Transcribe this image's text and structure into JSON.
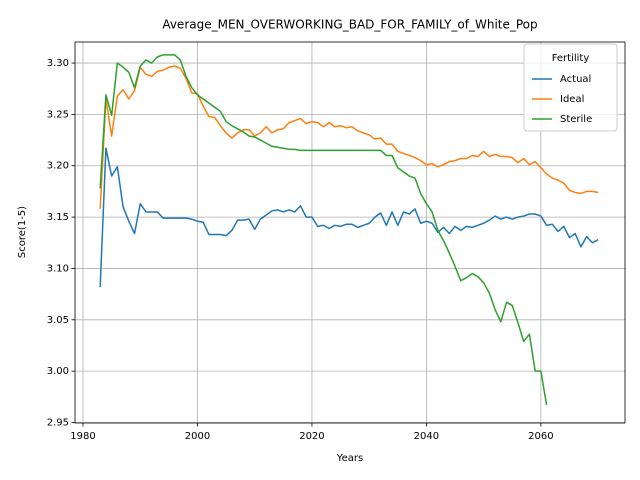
{
  "chart_data": {
    "type": "line",
    "title": "Average_MEN_OVERWORKING_BAD_FOR_FAMILY_of_White_Pop",
    "x_label": "Years",
    "y_label": "Score(1-5)",
    "legend_title": "Fertility",
    "legend_position": "upper right",
    "grid": true,
    "xlim": [
      1978.6,
      2074.7
    ],
    "ylim": [
      2.9495,
      3.3205
    ],
    "xticks": [
      1980,
      2000,
      2020,
      2040,
      2060
    ],
    "yticks": [
      2.95,
      {
        "value": 3,
        "label": "3.00"
      },
      3.05,
      {
        "value": 3.1,
        "label": "3.10"
      },
      3.15,
      {
        "value": 3.2,
        "label": "3.20"
      },
      3.25,
      {
        "value": 3.3,
        "label": "3.30"
      }
    ],
    "x": [
      1983,
      1984,
      1985,
      1986,
      1987,
      1988,
      1989,
      1990,
      1991,
      1992,
      1993,
      1994,
      1995,
      1996,
      1997,
      1998,
      1999,
      2000,
      2001,
      2002,
      2003,
      2004,
      2005,
      2006,
      2007,
      2008,
      2009,
      2010,
      2011,
      2012,
      2013,
      2014,
      2015,
      2016,
      2017,
      2018,
      2019,
      2020,
      2021,
      2022,
      2023,
      2024,
      2025,
      2026,
      2027,
      2028,
      2029,
      2030,
      2031,
      2032,
      2033,
      2034,
      2035,
      2036,
      2037,
      2038,
      2039,
      2040,
      2041,
      2042,
      2043,
      2044,
      2045,
      2046,
      2047,
      2048,
      2049,
      2050,
      2051,
      2052,
      2053,
      2054,
      2055,
      2056,
      2057,
      2058,
      2059,
      2060,
      2061,
      2062,
      2063,
      2064,
      2065,
      2066,
      2067,
      2068,
      2069,
      2070
    ],
    "series": [
      {
        "name": "Actual",
        "color": "#1f77b4",
        "values": [
          3.082,
          3.217,
          3.19,
          3.199,
          3.16,
          3.146,
          3.134,
          3.163,
          3.155,
          3.155,
          3.155,
          3.149,
          3.149,
          3.149,
          3.149,
          3.149,
          3.148,
          3.146,
          3.145,
          3.133,
          3.133,
          3.133,
          3.132,
          3.137,
          3.147,
          3.147,
          3.148,
          3.138,
          3.148,
          3.152,
          3.156,
          3.157,
          3.155,
          3.157,
          3.155,
          3.161,
          3.15,
          3.15,
          3.141,
          3.142,
          3.139,
          3.142,
          3.141,
          3.143,
          3.143,
          3.14,
          3.142,
          3.144,
          3.15,
          3.154,
          3.142,
          3.155,
          3.142,
          3.155,
          3.153,
          3.158,
          3.144,
          3.146,
          3.144,
          3.135,
          3.14,
          3.134,
          3.141,
          3.137,
          3.141,
          3.14,
          3.142,
          3.144,
          3.147,
          3.151,
          3.148,
          3.15,
          3.148,
          3.15,
          3.151,
          3.153,
          3.153,
          3.151,
          3.142,
          3.143,
          3.136,
          3.141,
          3.13,
          3.134,
          3.121,
          3.131,
          3.125,
          3.128
        ]
      },
      {
        "name": "Ideal",
        "color": "#ff7f0e",
        "values": [
          3.158,
          3.265,
          3.229,
          3.268,
          3.274,
          3.265,
          3.273,
          3.296,
          3.289,
          3.287,
          3.292,
          3.293,
          3.296,
          3.297,
          3.295,
          3.285,
          3.271,
          3.27,
          3.258,
          3.248,
          3.247,
          3.239,
          3.232,
          3.227,
          3.232,
          3.235,
          3.235,
          3.229,
          3.232,
          3.238,
          3.232,
          3.235,
          3.236,
          3.242,
          3.244,
          3.246,
          3.241,
          3.243,
          3.242,
          3.238,
          3.242,
          3.238,
          3.239,
          3.237,
          3.238,
          3.234,
          3.232,
          3.23,
          3.226,
          3.227,
          3.221,
          3.221,
          3.214,
          3.212,
          3.21,
          3.208,
          3.205,
          3.201,
          3.202,
          3.199,
          3.201,
          3.204,
          3.205,
          3.207,
          3.207,
          3.21,
          3.209,
          3.214,
          3.209,
          3.211,
          3.209,
          3.209,
          3.208,
          3.203,
          3.207,
          3.201,
          3.204,
          3.198,
          3.192,
          3.188,
          3.186,
          3.183,
          3.176,
          3.174,
          3.173,
          3.175,
          3.175,
          3.174
        ]
      },
      {
        "name": "Sterile",
        "color": "#2ca02c",
        "values": [
          3.178,
          3.269,
          3.249,
          3.3,
          3.296,
          3.291,
          3.276,
          3.297,
          3.303,
          3.3,
          3.306,
          3.308,
          3.308,
          3.308,
          3.303,
          3.287,
          3.276,
          3.269,
          3.265,
          3.261,
          3.257,
          3.253,
          3.243,
          3.239,
          3.236,
          3.233,
          3.229,
          3.228,
          3.225,
          3.222,
          3.219,
          3.218,
          3.217,
          3.216,
          3.216,
          3.215,
          3.215,
          3.215,
          3.215,
          3.215,
          3.215,
          3.215,
          3.215,
          3.215,
          3.215,
          3.215,
          3.215,
          3.215,
          3.215,
          3.215,
          3.21,
          3.21,
          3.198,
          3.194,
          3.19,
          3.188,
          3.173,
          3.163,
          3.155,
          3.137,
          3.127,
          3.115,
          3.102,
          3.088,
          3.091,
          3.095,
          3.092,
          3.086,
          3.076,
          3.06,
          3.048,
          3.067,
          3.064,
          3.047,
          3.029,
          3.036,
          3.0,
          3.0,
          2.967,
          null,
          null,
          null,
          null,
          null,
          null,
          null,
          null,
          null
        ]
      }
    ]
  }
}
